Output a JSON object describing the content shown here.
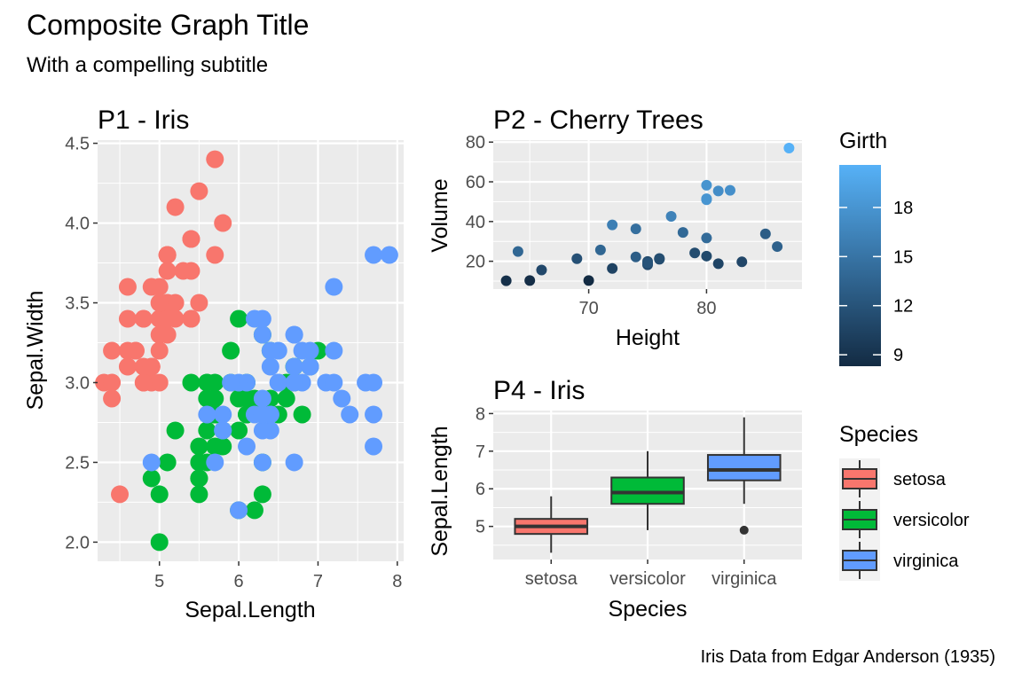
{
  "title": "Composite Graph Title",
  "subtitle": "With a compelling subtitle",
  "caption": "Iris Data from Edgar Anderson (1935)",
  "colors": {
    "setosa": "#F8766D",
    "versicolor": "#00BA38",
    "virginica": "#619CFF",
    "panel_bg": "#EBEBEB",
    "grid": "#FFFFFF",
    "girth_low": "#132B43",
    "girth_high": "#56B1F7"
  },
  "chart_data": [
    {
      "id": "p1",
      "type": "scatter",
      "title": "P1 - Iris",
      "xlabel": "Sepal.Length",
      "ylabel": "Sepal.Width",
      "xlim": [
        4.22,
        8.08
      ],
      "ylim": [
        1.88,
        4.52
      ],
      "xticks": [
        5,
        6,
        7,
        8
      ],
      "yticks": [
        2.0,
        2.5,
        3.0,
        3.5,
        4.0,
        4.5
      ],
      "ytick_labels": [
        "2.0",
        "2.5",
        "3.0",
        "3.5",
        "4.0",
        "4.5"
      ],
      "color_by": "species",
      "grid": true,
      "series": [
        {
          "name": "setosa",
          "points": [
            [
              5.1,
              3.5
            ],
            [
              4.9,
              3.0
            ],
            [
              4.7,
              3.2
            ],
            [
              4.6,
              3.1
            ],
            [
              5.0,
              3.6
            ],
            [
              5.4,
              3.9
            ],
            [
              4.6,
              3.4
            ],
            [
              5.0,
              3.4
            ],
            [
              4.4,
              2.9
            ],
            [
              4.9,
              3.1
            ],
            [
              5.4,
              3.7
            ],
            [
              4.8,
              3.4
            ],
            [
              4.8,
              3.0
            ],
            [
              4.3,
              3.0
            ],
            [
              5.8,
              4.0
            ],
            [
              5.7,
              4.4
            ],
            [
              5.4,
              3.9
            ],
            [
              5.1,
              3.5
            ],
            [
              5.7,
              3.8
            ],
            [
              5.1,
              3.8
            ],
            [
              5.4,
              3.4
            ],
            [
              5.1,
              3.7
            ],
            [
              4.6,
              3.6
            ],
            [
              5.1,
              3.3
            ],
            [
              4.8,
              3.4
            ],
            [
              5.0,
              3.0
            ],
            [
              5.0,
              3.4
            ],
            [
              5.2,
              3.5
            ],
            [
              5.2,
              3.4
            ],
            [
              4.7,
              3.2
            ],
            [
              4.8,
              3.1
            ],
            [
              5.4,
              3.4
            ],
            [
              5.2,
              4.1
            ],
            [
              5.5,
              4.2
            ],
            [
              4.9,
              3.1
            ],
            [
              5.0,
              3.2
            ],
            [
              5.5,
              3.5
            ],
            [
              4.9,
              3.6
            ],
            [
              4.4,
              3.0
            ],
            [
              5.1,
              3.4
            ],
            [
              5.0,
              3.5
            ],
            [
              4.5,
              2.3
            ],
            [
              4.4,
              3.2
            ],
            [
              5.0,
              3.5
            ],
            [
              5.1,
              3.8
            ],
            [
              4.8,
              3.0
            ],
            [
              5.1,
              3.8
            ],
            [
              4.6,
              3.2
            ],
            [
              5.3,
              3.7
            ],
            [
              5.0,
              3.3
            ]
          ]
        },
        {
          "name": "versicolor",
          "points": [
            [
              7.0,
              3.2
            ],
            [
              6.4,
              3.2
            ],
            [
              6.9,
              3.1
            ],
            [
              5.5,
              2.3
            ],
            [
              6.5,
              2.8
            ],
            [
              5.7,
              2.8
            ],
            [
              6.3,
              3.3
            ],
            [
              4.9,
              2.4
            ],
            [
              6.6,
              2.9
            ],
            [
              5.2,
              2.7
            ],
            [
              5.0,
              2.0
            ],
            [
              5.9,
              3.0
            ],
            [
              6.0,
              2.2
            ],
            [
              6.1,
              2.9
            ],
            [
              5.6,
              2.9
            ],
            [
              6.7,
              3.1
            ],
            [
              5.6,
              3.0
            ],
            [
              5.8,
              2.7
            ],
            [
              6.2,
              2.2
            ],
            [
              5.6,
              2.5
            ],
            [
              5.9,
              3.2
            ],
            [
              6.1,
              2.8
            ],
            [
              6.3,
              2.5
            ],
            [
              6.1,
              2.8
            ],
            [
              6.4,
              2.9
            ],
            [
              6.6,
              3.0
            ],
            [
              6.8,
              2.8
            ],
            [
              6.7,
              3.0
            ],
            [
              6.0,
              2.9
            ],
            [
              5.7,
              2.6
            ],
            [
              5.5,
              2.4
            ],
            [
              5.5,
              2.4
            ],
            [
              5.8,
              2.7
            ],
            [
              6.0,
              2.7
            ],
            [
              5.4,
              3.0
            ],
            [
              6.0,
              3.4
            ],
            [
              6.7,
              3.1
            ],
            [
              6.3,
              2.3
            ],
            [
              5.6,
              3.0
            ],
            [
              5.5,
              2.5
            ],
            [
              5.5,
              2.6
            ],
            [
              6.1,
              3.0
            ],
            [
              5.8,
              2.6
            ],
            [
              5.0,
              2.3
            ],
            [
              5.6,
              2.7
            ],
            [
              5.7,
              3.0
            ],
            [
              5.7,
              2.9
            ],
            [
              6.2,
              2.9
            ],
            [
              5.1,
              2.5
            ],
            [
              5.7,
              2.8
            ]
          ]
        },
        {
          "name": "virginica",
          "points": [
            [
              6.3,
              3.3
            ],
            [
              5.8,
              2.7
            ],
            [
              7.1,
              3.0
            ],
            [
              6.3,
              2.9
            ],
            [
              6.5,
              3.0
            ],
            [
              7.6,
              3.0
            ],
            [
              4.9,
              2.5
            ],
            [
              7.3,
              2.9
            ],
            [
              6.7,
              2.5
            ],
            [
              7.2,
              3.6
            ],
            [
              6.5,
              3.2
            ],
            [
              6.4,
              2.7
            ],
            [
              6.8,
              3.0
            ],
            [
              5.7,
              2.5
            ],
            [
              5.8,
              2.8
            ],
            [
              6.4,
              3.2
            ],
            [
              6.5,
              3.0
            ],
            [
              7.7,
              3.8
            ],
            [
              7.7,
              2.6
            ],
            [
              6.0,
              2.2
            ],
            [
              6.9,
              3.2
            ],
            [
              5.6,
              2.8
            ],
            [
              7.7,
              2.8
            ],
            [
              6.3,
              2.7
            ],
            [
              6.7,
              3.3
            ],
            [
              7.2,
              3.2
            ],
            [
              6.2,
              2.8
            ],
            [
              6.1,
              3.0
            ],
            [
              6.4,
              2.8
            ],
            [
              7.2,
              3.0
            ],
            [
              7.4,
              2.8
            ],
            [
              7.9,
              3.8
            ],
            [
              6.4,
              2.8
            ],
            [
              6.3,
              2.8
            ],
            [
              6.1,
              2.6
            ],
            [
              7.7,
              3.0
            ],
            [
              6.3,
              3.4
            ],
            [
              6.4,
              3.1
            ],
            [
              6.0,
              3.0
            ],
            [
              6.9,
              3.1
            ],
            [
              6.7,
              3.1
            ],
            [
              6.9,
              3.1
            ],
            [
              5.8,
              2.7
            ],
            [
              6.8,
              3.2
            ],
            [
              6.7,
              3.3
            ],
            [
              6.7,
              3.0
            ],
            [
              6.3,
              2.5
            ],
            [
              6.5,
              3.0
            ],
            [
              6.2,
              3.4
            ],
            [
              5.9,
              3.0
            ]
          ]
        }
      ]
    },
    {
      "id": "p2",
      "type": "scatter",
      "title": "P2 - Cherry Trees",
      "xlabel": "Height",
      "ylabel": "Volume",
      "xlim": [
        61.9,
        88.1
      ],
      "ylim": [
        6.0,
        81.0
      ],
      "xticks": [
        70,
        80
      ],
      "yticks": [
        20,
        40,
        60,
        80
      ],
      "color_by": "Girth",
      "grid": true,
      "legend": {
        "title": "Girth",
        "range": [
          8.3,
          20.6
        ],
        "breaks": [
          9,
          12,
          15,
          18
        ],
        "position": "right"
      },
      "points": [
        {
          "x": 70,
          "y": 10.3,
          "girth": 8.3
        },
        {
          "x": 65,
          "y": 10.3,
          "girth": 8.6
        },
        {
          "x": 63,
          "y": 10.2,
          "girth": 8.8
        },
        {
          "x": 72,
          "y": 16.4,
          "girth": 10.5
        },
        {
          "x": 81,
          "y": 18.8,
          "girth": 10.7
        },
        {
          "x": 83,
          "y": 19.7,
          "girth": 10.8
        },
        {
          "x": 66,
          "y": 15.6,
          "girth": 11.0
        },
        {
          "x": 75,
          "y": 18.2,
          "girth": 11.0
        },
        {
          "x": 80,
          "y": 22.6,
          "girth": 11.1
        },
        {
          "x": 75,
          "y": 19.9,
          "girth": 11.2
        },
        {
          "x": 79,
          "y": 24.2,
          "girth": 11.3
        },
        {
          "x": 76,
          "y": 21.0,
          "girth": 11.4
        },
        {
          "x": 76,
          "y": 21.4,
          "girth": 11.4
        },
        {
          "x": 69,
          "y": 21.3,
          "girth": 11.7
        },
        {
          "x": 75,
          "y": 19.1,
          "girth": 12.0
        },
        {
          "x": 74,
          "y": 22.2,
          "girth": 12.9
        },
        {
          "x": 85,
          "y": 33.8,
          "girth": 12.9
        },
        {
          "x": 86,
          "y": 27.4,
          "girth": 13.3
        },
        {
          "x": 71,
          "y": 25.7,
          "girth": 13.7
        },
        {
          "x": 64,
          "y": 24.9,
          "girth": 13.8
        },
        {
          "x": 78,
          "y": 34.5,
          "girth": 14.0
        },
        {
          "x": 80,
          "y": 31.7,
          "girth": 14.2
        },
        {
          "x": 74,
          "y": 36.3,
          "girth": 14.5
        },
        {
          "x": 72,
          "y": 38.3,
          "girth": 16.0
        },
        {
          "x": 77,
          "y": 42.6,
          "girth": 16.3
        },
        {
          "x": 81,
          "y": 55.4,
          "girth": 17.3
        },
        {
          "x": 82,
          "y": 55.7,
          "girth": 17.5
        },
        {
          "x": 80,
          "y": 58.3,
          "girth": 17.9
        },
        {
          "x": 80,
          "y": 51.5,
          "girth": 18.0
        },
        {
          "x": 80,
          "y": 51.0,
          "girth": 18.0
        },
        {
          "x": 87,
          "y": 77.0,
          "girth": 20.6
        }
      ]
    },
    {
      "id": "p4",
      "type": "box",
      "title": "P4 - Iris",
      "xlabel": "Species",
      "ylabel": "Sepal.Length",
      "ylim": [
        4.12,
        8.08
      ],
      "yticks": [
        5,
        6,
        7,
        8
      ],
      "categories": [
        "setosa",
        "versicolor",
        "virginica"
      ],
      "grid": true,
      "boxes": [
        {
          "name": "setosa",
          "min": 4.3,
          "q1": 4.8,
          "median": 5.0,
          "q3": 5.2,
          "max": 5.8,
          "outliers": []
        },
        {
          "name": "versicolor",
          "min": 4.9,
          "q1": 5.6,
          "median": 5.9,
          "q3": 6.3,
          "max": 7.0,
          "outliers": []
        },
        {
          "name": "virginica",
          "min": 5.6,
          "q1": 6.225,
          "median": 6.5,
          "q3": 6.9,
          "max": 7.9,
          "outliers": [
            4.9
          ]
        }
      ],
      "legend": {
        "title": "Species",
        "items": [
          "setosa",
          "versicolor",
          "virginica"
        ],
        "position": "right"
      }
    }
  ]
}
